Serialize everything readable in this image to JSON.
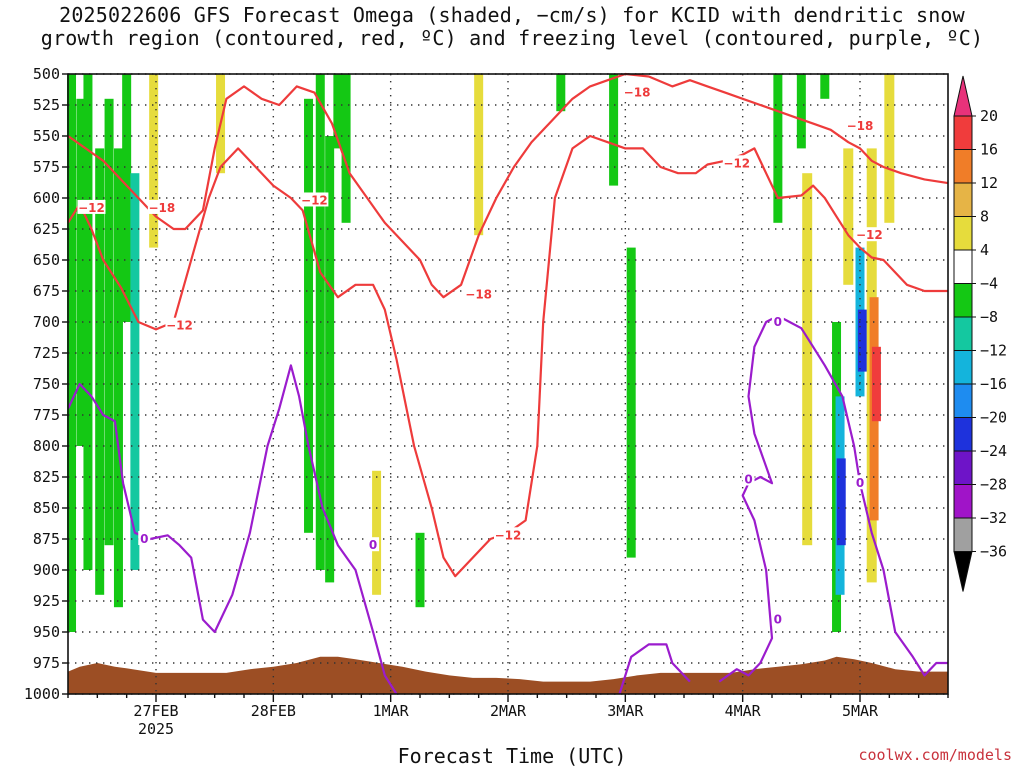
{
  "title": {
    "line1": "2025022606 GFS Forecast Omega (shaded, −cm/s) for KCID with dendritic snow",
    "line2": "growth region (contoured, red, ºC) and freezing level (contoured, purple, ºC)"
  },
  "credit": "coolwx.com/models",
  "chart_data": {
    "type": "heatmap",
    "xlabel": "Forecast Time (UTC)",
    "ylabel": "",
    "x_ticks": [
      {
        "label": "27FEB",
        "sub": "2025",
        "day": 1.0
      },
      {
        "label": "28FEB",
        "sub": "",
        "day": 2.0
      },
      {
        "label": "1MAR",
        "sub": "",
        "day": 3.0
      },
      {
        "label": "2MAR",
        "sub": "",
        "day": 4.0
      },
      {
        "label": "3MAR",
        "sub": "",
        "day": 5.0
      },
      {
        "label": "4MAR",
        "sub": "",
        "day": 6.0
      },
      {
        "label": "5MAR",
        "sub": "",
        "day": 7.0
      }
    ],
    "xlim": [
      0.25,
      7.75
    ],
    "y_ticks": [
      500,
      525,
      550,
      575,
      600,
      625,
      650,
      675,
      700,
      725,
      750,
      775,
      800,
      825,
      850,
      875,
      900,
      925,
      950,
      975,
      1000
    ],
    "ylim": [
      500,
      1000
    ],
    "y_reversed": true,
    "grid": true,
    "colorbar": {
      "labels": [
        "20",
        "16",
        "12",
        "8",
        "4",
        "−4",
        "−8",
        "−12",
        "−16",
        "−20",
        "−24",
        "−28",
        "−32",
        "−36"
      ],
      "colors": [
        "#e8327a",
        "#f03c3c",
        "#f07d28",
        "#e6b446",
        "#e6dc3c",
        "#ffffff",
        "#14c814",
        "#14c8a0",
        "#14b4dc",
        "#1e8cf0",
        "#1e32dc",
        "#6e14c8",
        "#a014c8",
        "#a0a0a0",
        "#000000"
      ]
    },
    "omega_shaded": [
      {
        "day": 0.28,
        "p_top": 500,
        "p_bot": 950,
        "value": -8
      },
      {
        "day": 0.36,
        "p_top": 520,
        "p_bot": 800,
        "value": -8
      },
      {
        "day": 0.42,
        "p_top": 500,
        "p_bot": 900,
        "value": -8
      },
      {
        "day": 0.52,
        "p_top": 560,
        "p_bot": 920,
        "value": -8
      },
      {
        "day": 0.6,
        "p_top": 520,
        "p_bot": 880,
        "value": -8
      },
      {
        "day": 0.68,
        "p_top": 560,
        "p_bot": 930,
        "value": -8
      },
      {
        "day": 0.75,
        "p_top": 500,
        "p_bot": 700,
        "value": -8
      },
      {
        "day": 0.82,
        "p_top": 580,
        "p_bot": 900,
        "value": -12
      },
      {
        "day": 0.98,
        "p_top": 500,
        "p_bot": 640,
        "value": 4
      },
      {
        "day": 1.55,
        "p_top": 500,
        "p_bot": 580,
        "value": 4
      },
      {
        "day": 2.3,
        "p_top": 520,
        "p_bot": 870,
        "value": -8
      },
      {
        "day": 2.4,
        "p_top": 500,
        "p_bot": 900,
        "value": -8
      },
      {
        "day": 2.48,
        "p_top": 550,
        "p_bot": 910,
        "value": -8
      },
      {
        "day": 2.55,
        "p_top": 500,
        "p_bot": 560,
        "value": -8
      },
      {
        "day": 2.62,
        "p_top": 500,
        "p_bot": 620,
        "value": -8
      },
      {
        "day": 2.88,
        "p_top": 820,
        "p_bot": 920,
        "value": 4
      },
      {
        "day": 3.25,
        "p_top": 870,
        "p_bot": 930,
        "value": -8
      },
      {
        "day": 3.75,
        "p_top": 500,
        "p_bot": 630,
        "value": 4
      },
      {
        "day": 4.45,
        "p_top": 500,
        "p_bot": 530,
        "value": -8
      },
      {
        "day": 4.9,
        "p_top": 500,
        "p_bot": 590,
        "value": -8
      },
      {
        "day": 5.05,
        "p_top": 640,
        "p_bot": 890,
        "value": -8
      },
      {
        "day": 6.3,
        "p_top": 500,
        "p_bot": 620,
        "value": -8
      },
      {
        "day": 6.5,
        "p_top": 500,
        "p_bot": 560,
        "value": -8
      },
      {
        "day": 6.55,
        "p_top": 580,
        "p_bot": 880,
        "value": 4
      },
      {
        "day": 6.7,
        "p_top": 500,
        "p_bot": 520,
        "value": -8
      },
      {
        "day": 6.8,
        "p_top": 700,
        "p_bot": 950,
        "value": -8
      },
      {
        "day": 6.83,
        "p_top": 760,
        "p_bot": 920,
        "value": -16
      },
      {
        "day": 6.84,
        "p_top": 810,
        "p_bot": 880,
        "value": -20
      },
      {
        "day": 6.9,
        "p_top": 560,
        "p_bot": 670,
        "value": 4
      },
      {
        "day": 7.0,
        "p_top": 640,
        "p_bot": 760,
        "value": -16
      },
      {
        "day": 7.02,
        "p_top": 690,
        "p_bot": 740,
        "value": -20
      },
      {
        "day": 7.1,
        "p_top": 560,
        "p_bot": 910,
        "value": 4
      },
      {
        "day": 7.12,
        "p_top": 680,
        "p_bot": 860,
        "value": 12
      },
      {
        "day": 7.14,
        "p_top": 720,
        "p_bot": 780,
        "value": 16
      },
      {
        "day": 7.25,
        "p_top": 500,
        "p_bot": 620,
        "value": 4
      }
    ],
    "contours_red_minus12": [
      [
        [
          0.25,
          620
        ],
        [
          0.35,
          605
        ],
        [
          0.45,
          625
        ],
        [
          0.55,
          650
        ],
        [
          0.7,
          672
        ],
        [
          0.85,
          700
        ],
        [
          1.0,
          706
        ],
        [
          1.15,
          700
        ],
        [
          1.3,
          650
        ],
        [
          1.45,
          600
        ],
        [
          1.55,
          575
        ],
        [
          1.7,
          560
        ],
        [
          1.85,
          575
        ],
        [
          2.0,
          590
        ],
        [
          2.15,
          600
        ],
        [
          2.25,
          610
        ],
        [
          2.4,
          660
        ],
        [
          2.55,
          680
        ],
        [
          2.7,
          670
        ],
        [
          2.85,
          670
        ],
        [
          2.95,
          690
        ],
        [
          3.05,
          730
        ],
        [
          3.2,
          800
        ],
        [
          3.35,
          850
        ],
        [
          3.45,
          890
        ],
        [
          3.55,
          905
        ],
        [
          3.7,
          890
        ],
        [
          3.85,
          875
        ],
        [
          4.0,
          870
        ],
        [
          4.15,
          860
        ],
        [
          4.25,
          800
        ],
        [
          4.3,
          700
        ],
        [
          4.4,
          600
        ],
        [
          4.55,
          560
        ],
        [
          4.7,
          550
        ],
        [
          4.85,
          555
        ],
        [
          5.0,
          560
        ],
        [
          5.15,
          560
        ],
        [
          5.3,
          575
        ],
        [
          5.45,
          580
        ],
        [
          5.6,
          580
        ],
        [
          5.7,
          573
        ],
        [
          5.85,
          570
        ],
        [
          6.0,
          565
        ],
        [
          6.1,
          560
        ],
        [
          6.2,
          580
        ],
        [
          6.3,
          600
        ],
        [
          6.5,
          598
        ],
        [
          6.6,
          590
        ],
        [
          6.7,
          600
        ],
        [
          6.8,
          615
        ],
        [
          6.9,
          630
        ],
        [
          7.0,
          640
        ],
        [
          7.1,
          648
        ],
        [
          7.2,
          650
        ],
        [
          7.3,
          660
        ],
        [
          7.4,
          670
        ],
        [
          7.55,
          675
        ],
        [
          7.75,
          675
        ]
      ]
    ],
    "contours_red_minus18": [
      [
        [
          0.25,
          550
        ],
        [
          0.4,
          560
        ],
        [
          0.55,
          570
        ],
        [
          0.7,
          585
        ],
        [
          0.85,
          600
        ],
        [
          1.0,
          615
        ],
        [
          1.15,
          625
        ],
        [
          1.25,
          625
        ],
        [
          1.4,
          610
        ],
        [
          1.5,
          560
        ],
        [
          1.6,
          520
        ],
        [
          1.75,
          510
        ],
        [
          1.9,
          520
        ],
        [
          2.05,
          525
        ],
        [
          2.2,
          510
        ],
        [
          2.35,
          515
        ],
        [
          2.5,
          540
        ],
        [
          2.65,
          580
        ],
        [
          2.8,
          600
        ],
        [
          2.95,
          620
        ],
        [
          3.1,
          635
        ],
        [
          3.25,
          650
        ],
        [
          3.35,
          670
        ],
        [
          3.45,
          680
        ],
        [
          3.6,
          670
        ],
        [
          3.75,
          630
        ],
        [
          3.9,
          600
        ],
        [
          4.05,
          575
        ],
        [
          4.2,
          555
        ],
        [
          4.35,
          540
        ],
        [
          4.55,
          520
        ],
        [
          4.7,
          510
        ],
        [
          4.85,
          505
        ],
        [
          5.0,
          500
        ],
        [
          5.2,
          502
        ],
        [
          5.4,
          510
        ],
        [
          5.55,
          505
        ],
        [
          5.7,
          510
        ],
        [
          5.85,
          515
        ],
        [
          6.0,
          520
        ],
        [
          6.15,
          525
        ],
        [
          6.3,
          530
        ],
        [
          6.45,
          535
        ],
        [
          6.6,
          540
        ],
        [
          6.75,
          545
        ],
        [
          6.9,
          555
        ],
        [
          7.0,
          560
        ],
        [
          7.1,
          570
        ],
        [
          7.2,
          575
        ],
        [
          7.35,
          580
        ],
        [
          7.55,
          585
        ],
        [
          7.75,
          588
        ]
      ]
    ],
    "contours_purple_zero": [
      [
        [
          0.25,
          770
        ],
        [
          0.35,
          750
        ],
        [
          0.45,
          760
        ],
        [
          0.55,
          775
        ],
        [
          0.65,
          780
        ],
        [
          0.72,
          830
        ],
        [
          0.82,
          870
        ],
        [
          0.95,
          875
        ],
        [
          1.1,
          872
        ],
        [
          1.2,
          880
        ],
        [
          1.3,
          890
        ],
        [
          1.4,
          940
        ],
        [
          1.5,
          950
        ],
        [
          1.65,
          920
        ],
        [
          1.8,
          870
        ],
        [
          1.95,
          800
        ],
        [
          2.05,
          770
        ],
        [
          2.15,
          735
        ],
        [
          2.22,
          760
        ],
        [
          2.3,
          800
        ],
        [
          2.42,
          850
        ],
        [
          2.55,
          880
        ],
        [
          2.7,
          900
        ],
        [
          2.85,
          950
        ],
        [
          2.95,
          985
        ],
        [
          3.05,
          1000
        ]
      ],
      [
        [
          4.95,
          1000
        ],
        [
          5.05,
          970
        ],
        [
          5.2,
          960
        ],
        [
          5.35,
          960
        ],
        [
          5.4,
          975
        ],
        [
          5.55,
          990
        ]
      ],
      [
        [
          5.8,
          990
        ],
        [
          5.95,
          980
        ],
        [
          6.05,
          985
        ],
        [
          6.15,
          975
        ],
        [
          6.25,
          955
        ],
        [
          6.2,
          900
        ],
        [
          6.1,
          860
        ],
        [
          6.0,
          840
        ],
        [
          6.05,
          830
        ],
        [
          6.15,
          825
        ],
        [
          6.25,
          830
        ],
        [
          6.1,
          790
        ],
        [
          6.05,
          760
        ],
        [
          6.1,
          720
        ],
        [
          6.2,
          700
        ],
        [
          6.3,
          695
        ],
        [
          6.4,
          700
        ],
        [
          6.5,
          705
        ],
        [
          6.6,
          720
        ],
        [
          6.7,
          735
        ],
        [
          6.85,
          760
        ],
        [
          6.95,
          800
        ],
        [
          7.0,
          830
        ],
        [
          7.1,
          870
        ],
        [
          7.2,
          900
        ],
        [
          7.3,
          950
        ],
        [
          7.45,
          970
        ],
        [
          7.55,
          985
        ],
        [
          7.65,
          975
        ],
        [
          7.75,
          975
        ]
      ]
    ],
    "contour_labels": [
      {
        "text": "−12",
        "day": 0.45,
        "p": 608,
        "color": "red"
      },
      {
        "text": "−18",
        "day": 1.05,
        "p": 608,
        "color": "red"
      },
      {
        "text": "−12",
        "day": 1.2,
        "p": 703,
        "color": "red"
      },
      {
        "text": "−12",
        "day": 2.35,
        "p": 602,
        "color": "red"
      },
      {
        "text": "−18",
        "day": 3.75,
        "p": 678,
        "color": "red"
      },
      {
        "text": "−12",
        "day": 4.0,
        "p": 872,
        "color": "red"
      },
      {
        "text": "−18",
        "day": 5.1,
        "p": 515,
        "color": "red"
      },
      {
        "text": "−12",
        "day": 5.95,
        "p": 572,
        "color": "red"
      },
      {
        "text": "−18",
        "day": 7.0,
        "p": 542,
        "color": "red"
      },
      {
        "text": "−12",
        "day": 7.08,
        "p": 630,
        "color": "red"
      },
      {
        "text": "0",
        "day": 0.9,
        "p": 875,
        "color": "purple"
      },
      {
        "text": "0",
        "day": 2.85,
        "p": 880,
        "color": "purple"
      },
      {
        "text": "0",
        "day": 6.3,
        "p": 700,
        "color": "purple"
      },
      {
        "text": "0",
        "day": 6.05,
        "p": 827,
        "color": "purple"
      },
      {
        "text": "0",
        "day": 6.3,
        "p": 940,
        "color": "purple"
      },
      {
        "text": "0",
        "day": 7.0,
        "p": 830,
        "color": "purple"
      }
    ],
    "terrain": [
      [
        0.25,
        982
      ],
      [
        0.35,
        978
      ],
      [
        0.5,
        975
      ],
      [
        0.65,
        978
      ],
      [
        0.8,
        980
      ],
      [
        1.0,
        983
      ],
      [
        1.2,
        983
      ],
      [
        1.4,
        983
      ],
      [
        1.6,
        983
      ],
      [
        1.8,
        980
      ],
      [
        2.0,
        978
      ],
      [
        2.2,
        975
      ],
      [
        2.4,
        970
      ],
      [
        2.55,
        970
      ],
      [
        2.7,
        972
      ],
      [
        2.9,
        975
      ],
      [
        3.1,
        978
      ],
      [
        3.3,
        982
      ],
      [
        3.5,
        985
      ],
      [
        3.7,
        987
      ],
      [
        3.9,
        987
      ],
      [
        4.1,
        988
      ],
      [
        4.3,
        990
      ],
      [
        4.5,
        990
      ],
      [
        4.7,
        990
      ],
      [
        4.9,
        988
      ],
      [
        5.1,
        985
      ],
      [
        5.3,
        983
      ],
      [
        5.5,
        983
      ],
      [
        5.7,
        983
      ],
      [
        5.9,
        983
      ],
      [
        6.1,
        980
      ],
      [
        6.3,
        978
      ],
      [
        6.5,
        976
      ],
      [
        6.7,
        973
      ],
      [
        6.8,
        970
      ],
      [
        6.95,
        972
      ],
      [
        7.1,
        975
      ],
      [
        7.3,
        980
      ],
      [
        7.5,
        982
      ],
      [
        7.75,
        982
      ]
    ],
    "colors": {
      "contour_red": "#ee3b3b",
      "contour_purple": "#9b1ccd",
      "terrain": "#9c4e24",
      "grid": "#333333"
    }
  }
}
